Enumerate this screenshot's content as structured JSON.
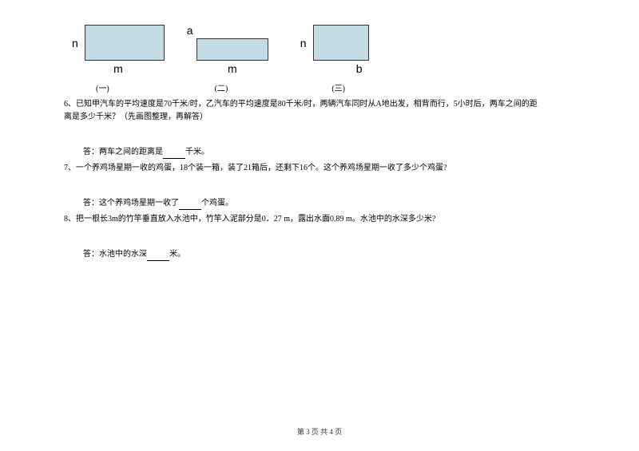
{
  "diagrams": {
    "d1": {
      "left": "n",
      "bottom": "m",
      "num": "(一)"
    },
    "d2": {
      "top": "a",
      "bottom": "m",
      "num": "(二)"
    },
    "d3": {
      "left": "n",
      "right_bottom": "b",
      "num": "(三)"
    }
  },
  "q6": {
    "text": "6、已知甲汽车的平均速度是70千米/时，乙汽车的平均速度是80千米/时，两辆汽车同时从A地出发，相背而行，5小时后，两车之间的距离是多少千米？（先画图整理，再解答）",
    "answer_prefix": "答：两车之间的距离是",
    "answer_suffix": "千米。"
  },
  "q7": {
    "text": "7、一个养鸡场星期一收的鸡蛋，18个装一箱，装了21箱后，还剩下16个。这个养鸡场星期一收了多少个鸡蛋?",
    "answer_prefix": "答：这个养鸡场星期一收了",
    "answer_suffix": "个鸡蛋。"
  },
  "q8": {
    "text": "8、把一根长3m的竹竿垂直放入水池中，竹竿入泥部分是0．27 m，露出水面0.89 m。水池中的水深多少米?",
    "answer_prefix": "答：水池中的水深",
    "answer_suffix": "米。"
  },
  "footer": "第 3 页 共 4 页"
}
